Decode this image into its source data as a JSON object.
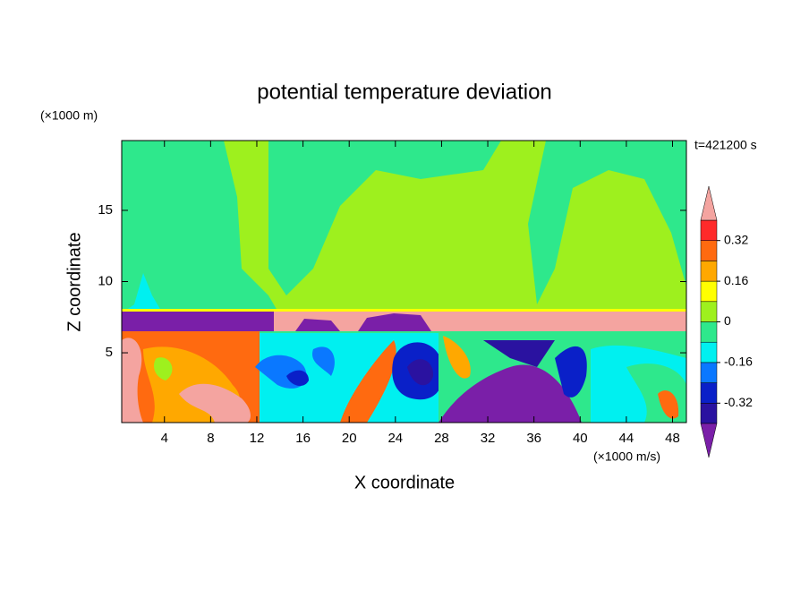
{
  "chart_data": {
    "type": "contour",
    "title": "potential temperature deviation",
    "xlabel": "X coordinate",
    "ylabel": "Z coordinate",
    "x_unit": "(×1000 m/s)",
    "y_unit": "(×1000 m)",
    "annotation": "t=421200 s",
    "xlim": [
      0.3,
      49.2
    ],
    "ylim": [
      0.1,
      19.9
    ],
    "xticks": [
      4,
      8,
      12,
      16,
      20,
      24,
      28,
      32,
      36,
      40,
      44,
      48
    ],
    "yticks": [
      5,
      10,
      15
    ],
    "colorbar": {
      "levels": [
        -0.4,
        -0.32,
        -0.24,
        -0.16,
        -0.08,
        0,
        0.08,
        0.16,
        0.24,
        0.32,
        0.4
      ],
      "colors": [
        "#7a1fa8",
        "#2a12a0",
        "#0a20c8",
        "#0a78ff",
        "#00f0f0",
        "#2ee88c",
        "#9ef01e",
        "#ffff00",
        "#ffa800",
        "#ff6a10",
        "#ff2a2a",
        "#f4a4a0"
      ],
      "ticks": [
        -0.32,
        -0.16,
        0,
        0.16,
        0.32
      ],
      "extend": "both"
    }
  }
}
